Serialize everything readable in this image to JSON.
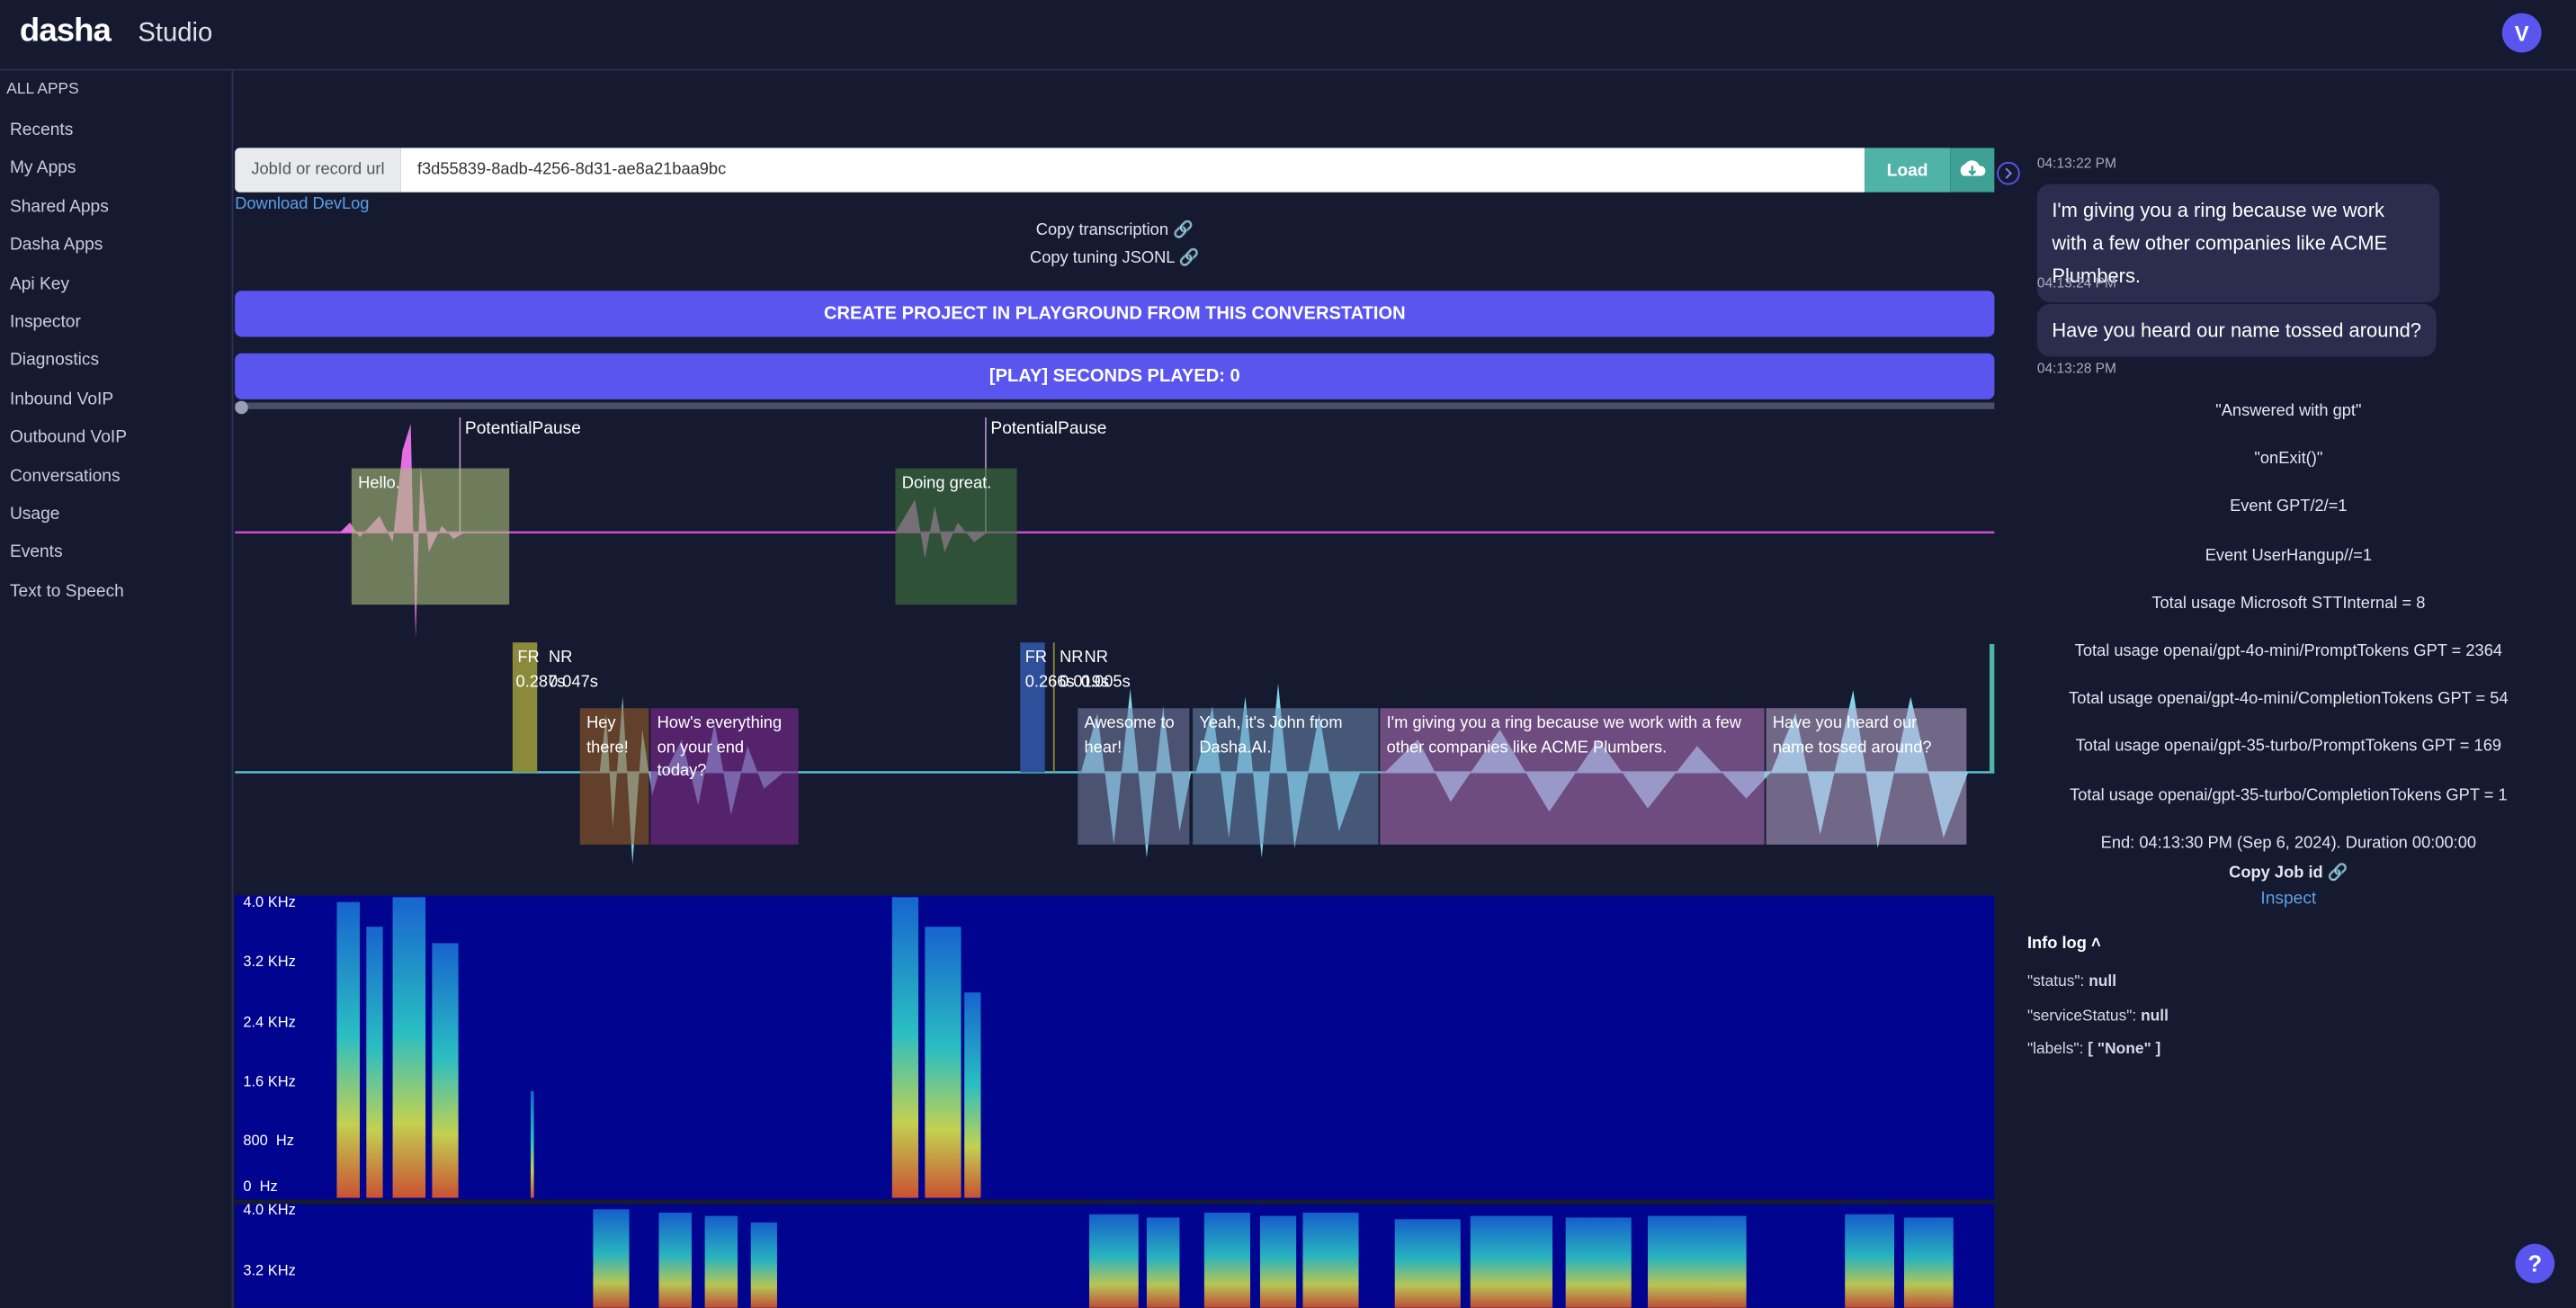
{
  "header": {
    "logo": "dasha",
    "product": "Studio",
    "avatar": "V"
  },
  "sidebar": {
    "section": "ALL APPS",
    "items": [
      "Recents",
      "My Apps",
      "Shared Apps",
      "Dasha Apps",
      "Api Key",
      "Inspector",
      "Diagnostics",
      "Inbound VoIP",
      "Outbound VoIP",
      "Conversations",
      "Usage",
      "Events",
      "Text to Speech"
    ]
  },
  "load_bar": {
    "label": "JobId or record url",
    "value": "f3d55839-8adb-4256-8d31-ae8a21baa9bc",
    "button": "Load"
  },
  "download": "Download DevLog",
  "copy_links": [
    "Copy transcription",
    "Copy tuning JSONL"
  ],
  "create_button": "CREATE PROJECT IN PLAYGROUND FROM THIS CONVERSTATION",
  "play_button": "[PLAY] SECONDS PLAYED: 0",
  "timeline": {
    "markers": [
      "PotentialPause",
      "PotentialPause"
    ],
    "top_segments": [
      "Hello.",
      "Doing great."
    ],
    "flags": [
      {
        "label": "FR",
        "time": "0.287s"
      },
      {
        "label": "NR",
        "time": "0.047s"
      },
      {
        "label": "FR",
        "time": "0.266s"
      },
      {
        "label": "NR",
        "time": "0.019s"
      },
      {
        "label": "NR",
        "time": "0.005s"
      }
    ],
    "bottom_segments": [
      "Hey there!",
      "How's everything on your end today?",
      "Awesome to hear!",
      "Yeah, it's John from Dasha.AI.",
      "I'm giving you a ring because we work with a few other companies like ACME Plumbers.",
      "Have you heard our name tossed around?"
    ],
    "frequency_labels": [
      "4.0 KHz",
      "3.2 KHz",
      "2.4 KHz",
      "1.6 KHz",
      "800  Hz",
      "0  Hz"
    ],
    "frequency_labels_2": [
      "4.0 KHz",
      "3.2 KHz"
    ]
  },
  "chat": {
    "times": [
      "04:13:22 PM",
      "04:13:24 PM",
      "04:13:28 PM"
    ],
    "messages": [
      "I'm giving you a ring because we work with a few other companies like ACME Plumbers.",
      "Have you heard our name tossed around?"
    ]
  },
  "events": [
    "\"Answered with gpt\"",
    "\"onExit()\"",
    "Event GPT/2/=1",
    "Event UserHangup//=1",
    "Total usage Microsoft STTInternal = 8",
    "Total usage openai/gpt-4o-mini/PromptTokens GPT = 2364",
    "Total usage openai/gpt-4o-mini/CompletionTokens GPT = 54",
    "Total usage openai/gpt-35-turbo/PromptTokens GPT = 169",
    "Total usage openai/gpt-35-turbo/CompletionTokens GPT = 1",
    "End: 04:13:30 PM (Sep 6, 2024). Duration 00:00:00"
  ],
  "copy_job": "Copy Job id",
  "inspect": "Inspect",
  "info_log": {
    "title": "Info log",
    "entries": [
      {
        "key": "\"status\":",
        "value": "null"
      },
      {
        "key": "\"serviceStatus\":",
        "value": "null"
      },
      {
        "key": "\"labels\":",
        "value": "[ \"None\" ]"
      }
    ]
  },
  "help": "?"
}
